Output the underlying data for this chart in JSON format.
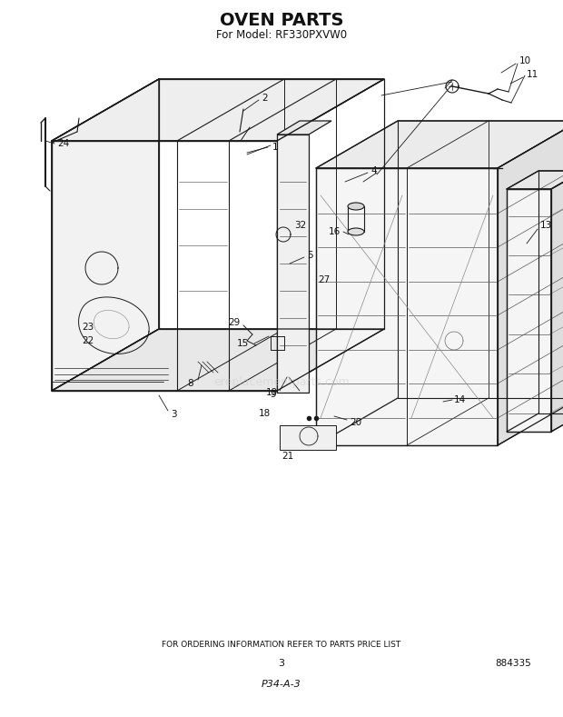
{
  "title": "OVEN PARTS",
  "subtitle": "For Model: RF330PXVW0",
  "title_fontsize": 14,
  "subtitle_fontsize": 8.5,
  "title_fontweight": "bold",
  "footer_text": "FOR ORDERING INFORMATION REFER TO PARTS PRICE LIST",
  "footer_fontsize": 6.5,
  "page_number": "3",
  "page_number_fontsize": 8,
  "part_number": "884335",
  "part_number_fontsize": 7.5,
  "diagram_code": "P34-A-3",
  "diagram_code_fontsize": 8,
  "bg_color": "#ffffff",
  "line_color": "#1a1a1a",
  "text_color": "#111111",
  "fig_width": 6.2,
  "fig_height": 7.89,
  "dpi": 100
}
